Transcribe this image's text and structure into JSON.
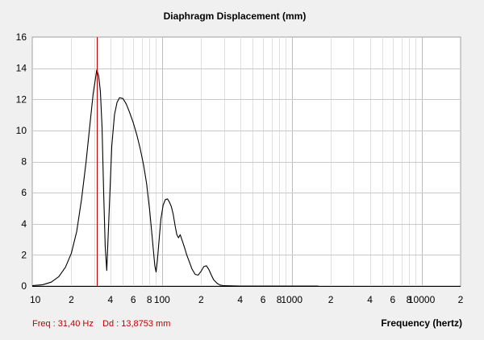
{
  "chart_data": {
    "type": "line",
    "title": "Diaphragm Displacement (mm)",
    "xlabel": "Frequency (hertz)",
    "ylabel": "",
    "xscale": "log",
    "xlim": [
      10,
      20000
    ],
    "ylim": [
      0,
      16
    ],
    "grid": true,
    "y_ticks": [
      "0",
      "2",
      "4",
      "6",
      "8",
      "10",
      "12",
      "14",
      "16"
    ],
    "x_ticks": [
      {
        "value": 10,
        "label": "10"
      },
      {
        "value": 20,
        "label": "2"
      },
      {
        "value": 40,
        "label": "4"
      },
      {
        "value": 60,
        "label": "6"
      },
      {
        "value": 80,
        "label": "8"
      },
      {
        "value": 100,
        "label": "100"
      },
      {
        "value": 200,
        "label": "2"
      },
      {
        "value": 400,
        "label": "4"
      },
      {
        "value": 600,
        "label": "6"
      },
      {
        "value": 800,
        "label": "8"
      },
      {
        "value": 1000,
        "label": "1000"
      },
      {
        "value": 2000,
        "label": "2"
      },
      {
        "value": 4000,
        "label": "4"
      },
      {
        "value": 6000,
        "label": "6"
      },
      {
        "value": 8000,
        "label": "8"
      },
      {
        "value": 10000,
        "label": "10000"
      },
      {
        "value": 20000,
        "label": "2"
      }
    ],
    "series": [
      {
        "color": "#000000",
        "x": [
          10,
          12,
          14,
          16,
          18,
          20,
          22,
          24,
          26,
          28,
          29.5,
          31.4,
          32.5,
          33.5,
          34.5,
          35.5,
          36.5,
          37.5,
          39,
          41,
          43,
          45,
          47,
          50,
          53,
          56,
          60,
          64,
          68,
          72,
          76,
          80,
          83,
          86,
          88,
          90,
          92,
          95,
          98,
          102,
          106,
          110,
          114,
          118,
          122,
          126,
          130,
          134,
          138,
          142,
          146,
          150,
          155,
          160,
          170,
          180,
          190,
          200,
          210,
          220,
          230,
          240,
          250,
          265,
          280,
          300,
          400,
          1600
        ],
        "y": [
          0.02,
          0.08,
          0.25,
          0.6,
          1.2,
          2.1,
          3.5,
          5.6,
          8.0,
          10.6,
          12.4,
          13.88,
          13.5,
          12.5,
          10.2,
          6.0,
          2.5,
          1.0,
          4.5,
          9.0,
          11.0,
          11.8,
          12.1,
          12.05,
          11.7,
          11.2,
          10.5,
          9.7,
          8.8,
          7.8,
          6.6,
          5.0,
          3.6,
          2.2,
          1.3,
          0.9,
          1.6,
          3.0,
          4.3,
          5.2,
          5.55,
          5.6,
          5.4,
          5.1,
          4.6,
          3.9,
          3.3,
          3.1,
          3.3,
          3.0,
          2.7,
          2.4,
          2.0,
          1.7,
          1.1,
          0.75,
          0.7,
          0.95,
          1.25,
          1.3,
          1.05,
          0.7,
          0.4,
          0.18,
          0.06,
          0.02,
          0.0,
          0.0
        ]
      }
    ],
    "marker": {
      "value": 31.4,
      "color": "#c00000"
    },
    "readout": {
      "freq": "Freq : 31,40 Hz",
      "dd": "Dd : 13,8753 mm"
    }
  }
}
